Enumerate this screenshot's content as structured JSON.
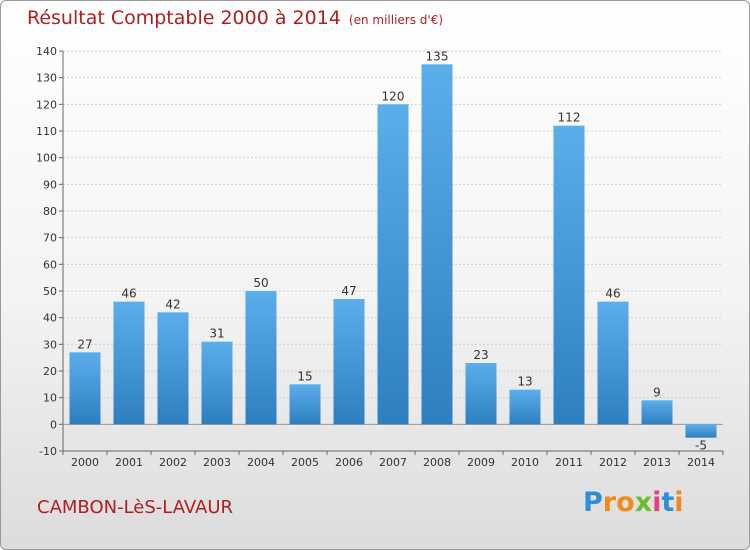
{
  "header": {
    "title": "Résultat Comptable 2000 à 2014",
    "unit": "(en milliers d'€)"
  },
  "footer": {
    "commune": "CAMBON-LèS-LAVAUR",
    "logo": "Proxiti"
  },
  "colors": {
    "title": "#b01e1e",
    "bar_light": "#5aaeea",
    "bar_dark": "#2f7fbf",
    "logo_letters": [
      "#2e8fd6",
      "#f08a1c",
      "#f08a1c",
      "#6cbd2e",
      "#e8407a",
      "#2e8fd6",
      "#f08a1c"
    ]
  },
  "chart_data": {
    "type": "bar",
    "title": "Résultat Comptable 2000 à 2014",
    "subtitle": "(en milliers d'€)",
    "xlabel": "",
    "ylabel": "",
    "categories": [
      "2000",
      "2001",
      "2002",
      "2003",
      "2004",
      "2005",
      "2006",
      "2007",
      "2008",
      "2009",
      "2010",
      "2011",
      "2012",
      "2013",
      "2014"
    ],
    "values": [
      27,
      46,
      42,
      31,
      50,
      15,
      47,
      120,
      135,
      23,
      13,
      112,
      46,
      9,
      -5
    ],
    "ylim": [
      -10,
      140
    ],
    "yticks": [
      -10,
      0,
      10,
      20,
      30,
      40,
      50,
      60,
      70,
      80,
      90,
      100,
      110,
      120,
      130,
      140
    ],
    "grid": true,
    "legend": "none"
  }
}
